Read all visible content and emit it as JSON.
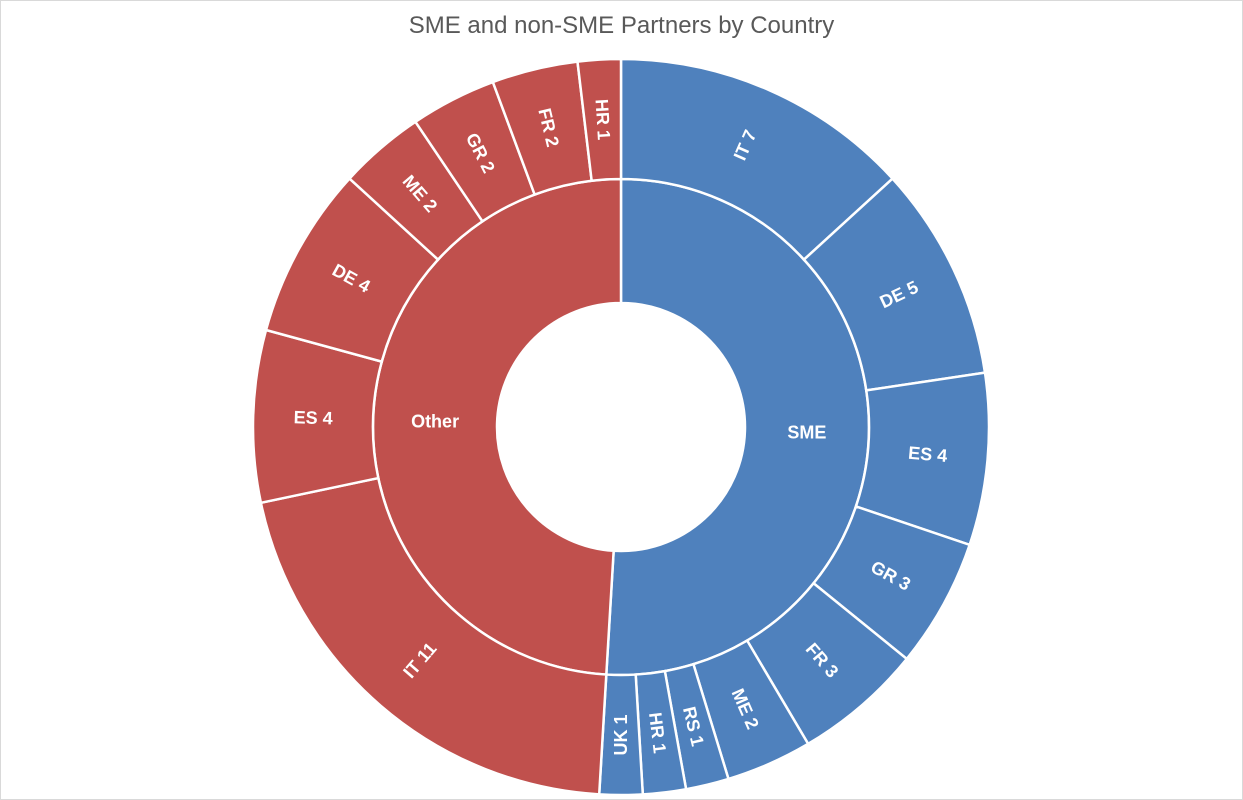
{
  "chart_data": {
    "type": "sunburst",
    "title": "SME and non-SME Partners by Country",
    "colors": {
      "SME": "#4f81bd",
      "Other": "#c0504d",
      "border": "#ffffff"
    },
    "groups": [
      {
        "name": "SME",
        "label": "SME",
        "color": "#4f81bd",
        "children": [
          {
            "country": "IT",
            "value": 7,
            "label": "IT 7"
          },
          {
            "country": "DE",
            "value": 5,
            "label": "DE 5"
          },
          {
            "country": "ES",
            "value": 4,
            "label": "ES 4"
          },
          {
            "country": "GR",
            "value": 3,
            "label": "GR 3"
          },
          {
            "country": "FR",
            "value": 3,
            "label": "FR 3"
          },
          {
            "country": "ME",
            "value": 2,
            "label": "ME 2"
          },
          {
            "country": "RS",
            "value": 1,
            "label": "RS 1"
          },
          {
            "country": "HR",
            "value": 1,
            "label": "HR 1"
          },
          {
            "country": "UK",
            "value": 1,
            "label": "UK 1"
          }
        ]
      },
      {
        "name": "Other",
        "label": "Other",
        "color": "#c0504d",
        "children": [
          {
            "country": "IT",
            "value": 11,
            "label": "IT 11"
          },
          {
            "country": "ES",
            "value": 4,
            "label": "ES 4"
          },
          {
            "country": "DE",
            "value": 4,
            "label": "DE 4"
          },
          {
            "country": "ME",
            "value": 2,
            "label": "ME 2"
          },
          {
            "country": "GR",
            "value": 2,
            "label": "GR 2"
          },
          {
            "country": "FR",
            "value": 2,
            "label": "FR 2"
          },
          {
            "country": "HR",
            "value": 1,
            "label": "HR 1"
          }
        ]
      }
    ]
  }
}
